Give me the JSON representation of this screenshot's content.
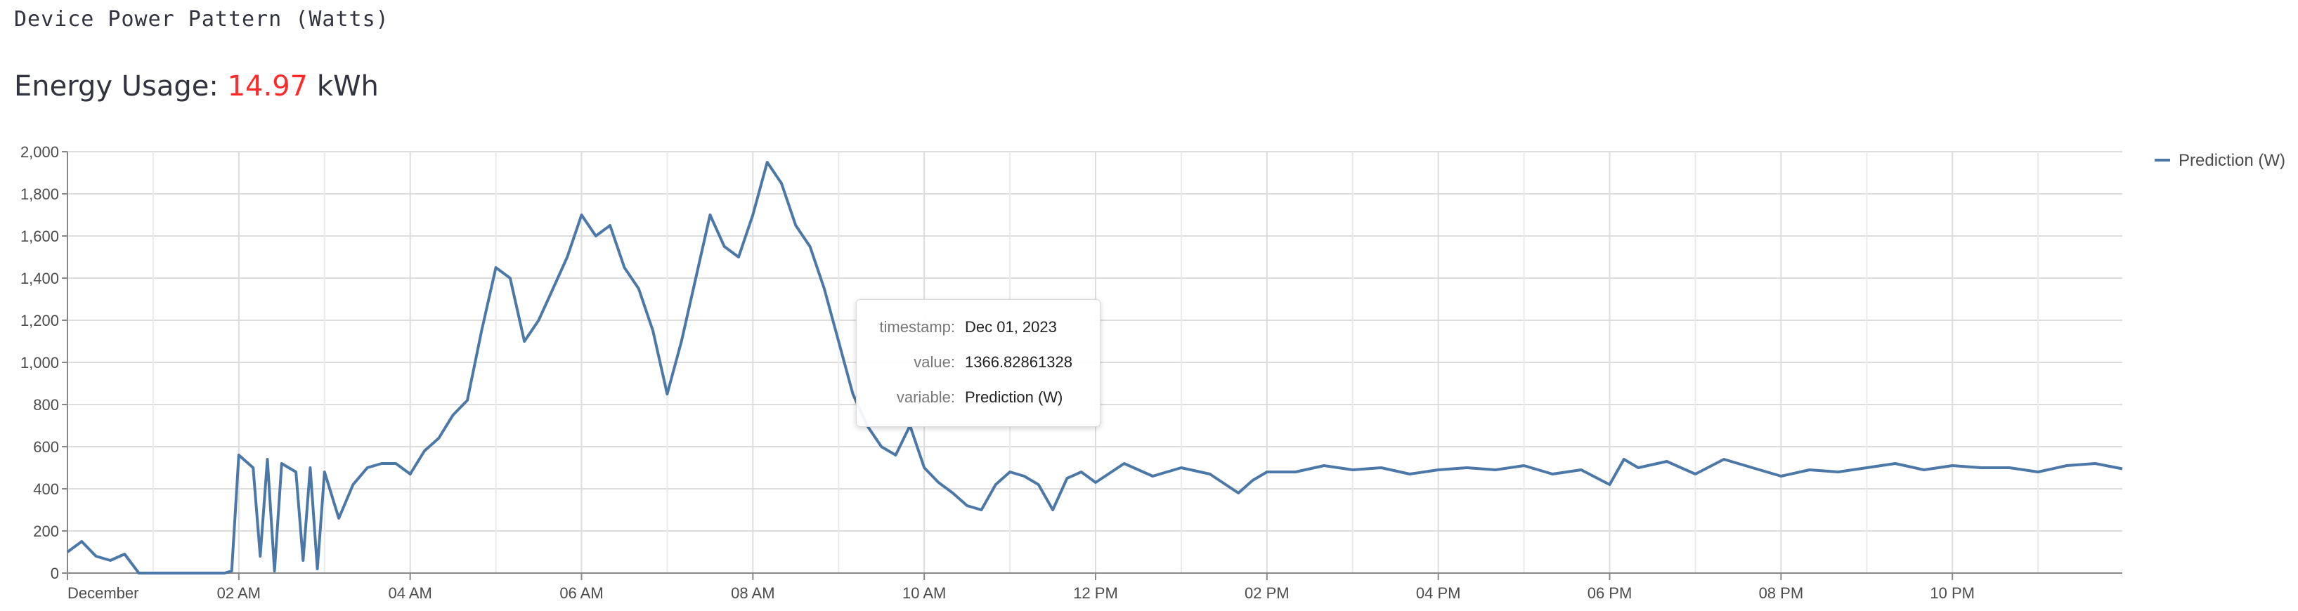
{
  "header": {
    "caption": "Device Power Pattern (Watts)",
    "energy_label": "Energy Usage:",
    "energy_value": "14.97",
    "energy_unit": "kWh"
  },
  "colors": {
    "line": "#4c78a8",
    "grid": "#dddddd",
    "energy_value": "#ff2b2b"
  },
  "chart_data": {
    "type": "line",
    "title": "",
    "xlabel": "",
    "ylabel": "",
    "ylim": [
      0,
      2000
    ],
    "yticks": [
      0,
      200,
      400,
      600,
      800,
      1000,
      1200,
      1400,
      1600,
      1800,
      2000
    ],
    "ytick_labels": [
      "0",
      "200",
      "400",
      "600",
      "800",
      "1,000",
      "1,200",
      "1,400",
      "1,600",
      "1,800",
      "2,000"
    ],
    "xlim": [
      "2023-12-01 00:00",
      "2023-12-01 23:59"
    ],
    "xticks": [
      "00:00",
      "02:00",
      "04:00",
      "06:00",
      "08:00",
      "10:00",
      "12:00",
      "14:00",
      "16:00",
      "18:00",
      "20:00",
      "22:00"
    ],
    "xtick_labels": [
      "December",
      "02 AM",
      "04 AM",
      "06 AM",
      "08 AM",
      "10 AM",
      "12 PM",
      "02 PM",
      "04 PM",
      "06 PM",
      "08 PM",
      "10 PM"
    ],
    "grid": true,
    "legend_position": "top-right",
    "series": [
      {
        "name": "Prediction (W)",
        "x": [
          "00:00",
          "00:10",
          "00:20",
          "00:30",
          "00:40",
          "00:50",
          "01:00",
          "01:10",
          "01:20",
          "01:30",
          "01:40",
          "01:50",
          "01:55",
          "02:00",
          "02:10",
          "02:15",
          "02:20",
          "02:25",
          "02:30",
          "02:40",
          "02:45",
          "02:50",
          "02:55",
          "03:00",
          "03:10",
          "03:20",
          "03:30",
          "03:40",
          "03:50",
          "04:00",
          "04:10",
          "04:20",
          "04:30",
          "04:40",
          "04:50",
          "05:00",
          "05:10",
          "05:20",
          "05:30",
          "05:40",
          "05:50",
          "06:00",
          "06:10",
          "06:20",
          "06:30",
          "06:40",
          "06:50",
          "07:00",
          "07:10",
          "07:20",
          "07:30",
          "07:40",
          "07:50",
          "08:00",
          "08:10",
          "08:20",
          "08:30",
          "08:40",
          "08:50",
          "09:00",
          "09:10",
          "09:20",
          "09:30",
          "09:40",
          "09:50",
          "10:00",
          "10:10",
          "10:20",
          "10:30",
          "10:40",
          "10:50",
          "11:00",
          "11:10",
          "11:20",
          "11:30",
          "11:40",
          "11:50",
          "12:00",
          "12:20",
          "12:40",
          "13:00",
          "13:20",
          "13:40",
          "13:50",
          "14:00",
          "14:20",
          "14:40",
          "15:00",
          "15:20",
          "15:40",
          "16:00",
          "16:20",
          "16:40",
          "17:00",
          "17:20",
          "17:40",
          "18:00",
          "18:10",
          "18:20",
          "18:40",
          "19:00",
          "19:20",
          "19:40",
          "20:00",
          "20:20",
          "20:40",
          "21:00",
          "21:20",
          "21:40",
          "22:00",
          "22:20",
          "22:40",
          "23:00",
          "23:20",
          "23:40",
          "23:59"
        ],
        "values": [
          100,
          150,
          80,
          60,
          90,
          0,
          0,
          0,
          0,
          0,
          0,
          0,
          10,
          560,
          500,
          80,
          540,
          10,
          520,
          480,
          60,
          500,
          20,
          480,
          260,
          420,
          500,
          520,
          520,
          470,
          580,
          640,
          750,
          820,
          1150,
          1450,
          1400,
          1100,
          1200,
          1350,
          1500,
          1700,
          1600,
          1650,
          1450,
          1350,
          1150,
          850,
          1100,
          1400,
          1700,
          1550,
          1500,
          1700,
          1950,
          1850,
          1650,
          1550,
          1350,
          1100,
          850,
          700,
          600,
          560,
          700,
          500,
          430,
          380,
          320,
          300,
          420,
          480,
          460,
          420,
          300,
          450,
          480,
          430,
          520,
          460,
          500,
          470,
          380,
          440,
          480,
          480,
          510,
          490,
          500,
          470,
          490,
          500,
          490,
          510,
          470,
          490,
          420,
          540,
          500,
          530,
          470,
          540,
          500,
          460,
          490,
          480,
          500,
          520,
          490,
          510,
          500,
          500,
          480,
          510,
          520,
          495
        ]
      }
    ]
  },
  "tooltip": {
    "rows": [
      {
        "key": "timestamp:",
        "value": "Dec 01, 2023"
      },
      {
        "key": "value:",
        "value": "1366.82861328"
      },
      {
        "key": "variable:",
        "value": "Prediction (W)"
      }
    ]
  }
}
